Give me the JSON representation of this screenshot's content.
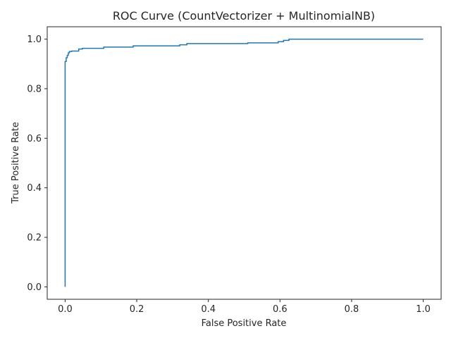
{
  "colors": {
    "background": "#ffffff",
    "axes": "#262626",
    "series": "#1f77b4"
  },
  "chart_data": {
    "type": "line",
    "title": "ROC Curve (CountVectorizer + MultinomialNB)",
    "xlabel": "False Positive Rate",
    "ylabel": "True Positive Rate",
    "xlim": [
      -0.05,
      1.05
    ],
    "ylim": [
      -0.05,
      1.05
    ],
    "xticks": [
      0.0,
      0.2,
      0.4,
      0.6,
      0.8,
      1.0
    ],
    "yticks": [
      0.0,
      0.2,
      0.4,
      0.6,
      0.8,
      1.0
    ],
    "xtick_labels": [
      "0.0",
      "0.2",
      "0.4",
      "0.6",
      "0.8",
      "1.0"
    ],
    "ytick_labels": [
      "0.0",
      "0.2",
      "0.4",
      "0.6",
      "0.8",
      "1.0"
    ],
    "grid": false,
    "series": [
      {
        "x": [
          0.0,
          0.0,
          0.003,
          0.003,
          0.006,
          0.006,
          0.009,
          0.009,
          0.012,
          0.012,
          0.018,
          0.018,
          0.038,
          0.038,
          0.048,
          0.048,
          0.108,
          0.108,
          0.19,
          0.19,
          0.32,
          0.32,
          0.34,
          0.34,
          0.51,
          0.51,
          0.595,
          0.595,
          0.61,
          0.61,
          0.625,
          0.625,
          1.0
        ],
        "y": [
          0.0,
          0.91,
          0.91,
          0.925,
          0.925,
          0.935,
          0.935,
          0.945,
          0.945,
          0.95,
          0.95,
          0.952,
          0.952,
          0.96,
          0.96,
          0.963,
          0.963,
          0.968,
          0.968,
          0.973,
          0.973,
          0.977,
          0.977,
          0.982,
          0.982,
          0.985,
          0.985,
          0.99,
          0.99,
          0.995,
          0.995,
          1.0,
          1.0
        ]
      }
    ]
  }
}
